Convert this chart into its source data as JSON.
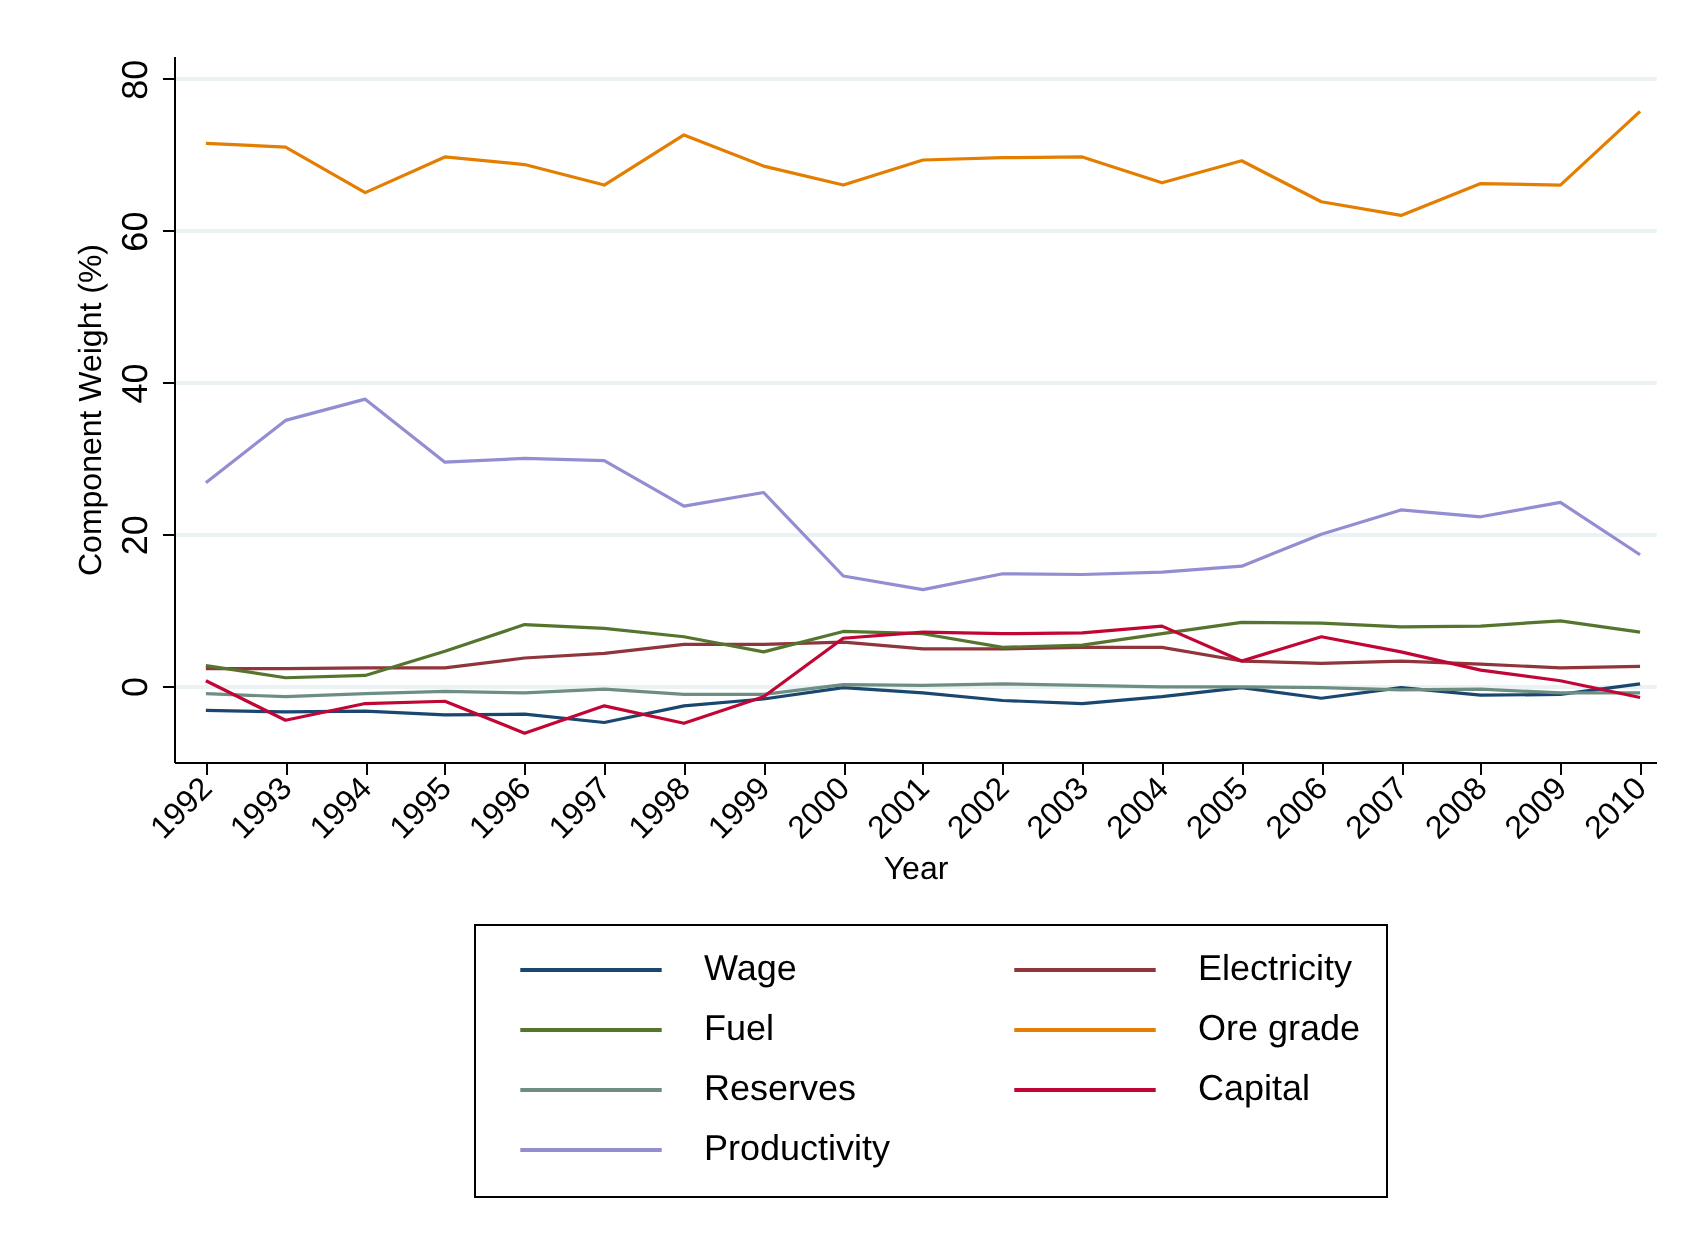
{
  "chart_data": {
    "type": "line",
    "xlabel": "Year",
    "ylabel": "Component Weight (%)",
    "x": [
      1992,
      1993,
      1994,
      1995,
      1996,
      1997,
      1998,
      1999,
      2000,
      2001,
      2002,
      2003,
      2004,
      2005,
      2006,
      2007,
      2008,
      2009,
      2010
    ],
    "xlim": [
      1991.6,
      2010.2
    ],
    "xticks": [
      1992,
      1993,
      1994,
      1995,
      1996,
      1997,
      1998,
      1999,
      2000,
      2001,
      2002,
      2003,
      2004,
      2005,
      2006,
      2007,
      2008,
      2009,
      2010
    ],
    "ylim": [
      -10,
      83
    ],
    "yticks": [
      0,
      20,
      40,
      60,
      80
    ],
    "grid": "y",
    "legend": "bottom",
    "line_style": "solid",
    "series": [
      {
        "name": "Wage",
        "color": "#1a476f",
        "values": [
          -3.2,
          -3.4,
          -3.3,
          -3.8,
          -3.7,
          -4.8,
          -2.6,
          -1.7,
          -0.2,
          -0.9,
          -1.9,
          -2.3,
          -1.4,
          -0.2,
          -1.6,
          -0.2,
          -1.2,
          -1.1,
          0.3
        ]
      },
      {
        "name": "Electricity",
        "color": "#90353b",
        "values": [
          2.3,
          2.3,
          2.4,
          2.4,
          3.7,
          4.3,
          5.5,
          5.5,
          5.8,
          4.9,
          4.9,
          5.1,
          5.1,
          3.3,
          3.0,
          3.3,
          2.9,
          2.4,
          2.6
        ]
      },
      {
        "name": "Fuel",
        "color": "#55752f",
        "values": [
          2.7,
          1.1,
          1.4,
          4.6,
          8.1,
          7.6,
          6.5,
          4.5,
          7.2,
          6.9,
          5.1,
          5.4,
          6.9,
          8.4,
          8.3,
          7.8,
          7.9,
          8.6,
          7.1
        ]
      },
      {
        "name": "Ore grade",
        "color": "#e37e00",
        "values": [
          71.5,
          71,
          65,
          69.7,
          68.7,
          66,
          72.6,
          68.5,
          66,
          69.3,
          69.6,
          69.7,
          66.3,
          69.2,
          63.8,
          62,
          66.2,
          66,
          75.7
        ]
      },
      {
        "name": "Reserves",
        "color": "#6e8e84",
        "values": [
          -1.0,
          -1.4,
          -1.0,
          -0.7,
          -0.9,
          -0.4,
          -1.1,
          -1.1,
          0.2,
          0.1,
          0.3,
          0.1,
          -0.1,
          -0.1,
          -0.2,
          -0.5,
          -0.4,
          -0.9,
          -0.9
        ]
      },
      {
        "name": "Capital",
        "color": "#c10534",
        "values": [
          0.7,
          -4.5,
          -2.3,
          -2.0,
          -6.2,
          -2.6,
          -4.9,
          -1.4,
          6.3,
          7.1,
          6.9,
          7.0,
          7.9,
          3.3,
          6.5,
          4.5,
          2.1,
          0.7,
          -1.5
        ]
      },
      {
        "name": "Productivity",
        "color": "#938dd2",
        "values": [
          26.8,
          35,
          37.8,
          29.5,
          30,
          29.7,
          23.7,
          25.5,
          14.5,
          12.7,
          14.8,
          14.7,
          15,
          15.8,
          20,
          23.2,
          22.3,
          24.2,
          17.3
        ]
      }
    ]
  }
}
